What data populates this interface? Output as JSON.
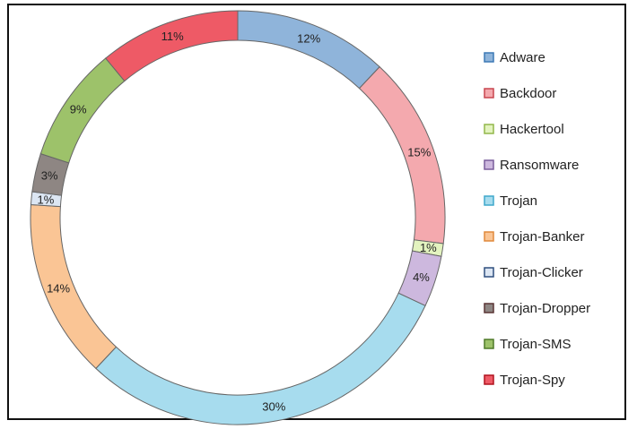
{
  "chart_data": {
    "type": "pie",
    "variant": "donut",
    "title": "",
    "legend_position": "right",
    "slices": [
      {
        "label": "Adware",
        "value": 12,
        "display": "12%",
        "color": "#8FB4DA",
        "edge": "#3C79B5"
      },
      {
        "label": "Backdoor",
        "value": 15,
        "display": "15%",
        "color": "#F4A9AE",
        "edge": "#C8454F"
      },
      {
        "label": "Hackertool",
        "value": 1,
        "display": "1%",
        "color": "#E3F3BF",
        "edge": "#92B74A"
      },
      {
        "label": "Ransomware",
        "value": 4,
        "display": "4%",
        "color": "#CDB8DE",
        "edge": "#7A5D9C"
      },
      {
        "label": "Trojan",
        "value": 30,
        "display": "30%",
        "color": "#A7DCEE",
        "edge": "#3FA8CC"
      },
      {
        "label": "Trojan-Banker",
        "value": 14,
        "display": "14%",
        "color": "#FAC595",
        "edge": "#E0893B"
      },
      {
        "label": "Trojan-Clicker",
        "value": 1,
        "display": "1%",
        "color": "#DCE6F3",
        "edge": "#2E4F7E"
      },
      {
        "label": "Trojan-Dropper",
        "value": 3,
        "display": "3%",
        "color": "#8E8683",
        "edge": "#5A3535"
      },
      {
        "label": "Trojan-SMS",
        "value": 9,
        "display": "9%",
        "color": "#9DC26A",
        "edge": "#4E7A28"
      },
      {
        "label": "Trojan-Spy",
        "value": 11,
        "display": "11%",
        "color": "#EE5A66",
        "edge": "#B0121F"
      }
    ]
  }
}
